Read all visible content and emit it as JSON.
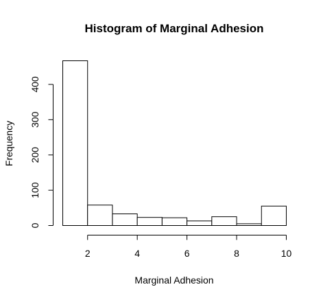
{
  "chart_data": {
    "type": "bar",
    "title": "Histogram of Marginal Adhesion",
    "xlabel": "Marginal Adhesion",
    "ylabel": "Frequency",
    "bins": [
      [
        1,
        2
      ],
      [
        2,
        3
      ],
      [
        3,
        4
      ],
      [
        4,
        5
      ],
      [
        5,
        6
      ],
      [
        6,
        7
      ],
      [
        7,
        8
      ],
      [
        8,
        9
      ],
      [
        9,
        10
      ]
    ],
    "values": [
      467,
      58,
      33,
      23,
      22,
      13,
      25,
      5,
      55
    ],
    "xlim": [
      1,
      10
    ],
    "ylim": [
      0,
      467
    ],
    "xticks": [
      2,
      4,
      6,
      8,
      10
    ],
    "yticks": [
      0,
      100,
      200,
      300,
      400
    ],
    "grid": false,
    "bar_fill": "#ffffff",
    "bar_stroke": "#000000"
  }
}
